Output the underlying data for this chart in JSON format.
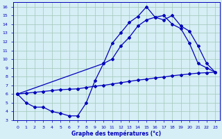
{
  "xlabel": "Graphe des températures (°c)",
  "xlim": [
    -0.5,
    23.5
  ],
  "ylim": [
    3,
    16.5
  ],
  "xticks": [
    0,
    1,
    2,
    3,
    4,
    5,
    6,
    7,
    8,
    9,
    10,
    11,
    12,
    13,
    14,
    15,
    16,
    17,
    18,
    19,
    20,
    21,
    22,
    23
  ],
  "yticks": [
    3,
    4,
    5,
    6,
    7,
    8,
    9,
    10,
    11,
    12,
    13,
    14,
    15,
    16
  ],
  "bg_color": "#d6eef5",
  "line_color": "#0000bb",
  "grid_color": "#a0c8b8",
  "curve1_x": [
    0,
    1,
    2,
    3,
    4,
    5,
    6,
    7,
    8,
    9,
    10,
    11,
    12,
    13,
    14,
    15,
    16,
    17,
    18,
    19,
    20,
    21,
    22,
    23
  ],
  "curve1_y": [
    6.0,
    5.0,
    4.5,
    4.5,
    4.0,
    3.8,
    3.5,
    3.5,
    5.0,
    7.5,
    9.5,
    11.8,
    13.0,
    14.2,
    14.9,
    16.0,
    14.8,
    15.0,
    14.0,
    13.5,
    11.8,
    9.5,
    9.0,
    8.5
  ],
  "curve2_x": [
    0,
    10,
    11,
    12,
    13,
    14,
    15,
    16,
    17,
    18,
    19,
    20,
    21,
    22,
    23
  ],
  "curve2_y": [
    6.0,
    9.5,
    10.0,
    11.5,
    12.5,
    13.8,
    14.5,
    14.8,
    14.5,
    15.0,
    13.8,
    13.2,
    11.5,
    9.5,
    8.5
  ],
  "curve3_x": [
    0,
    1,
    2,
    3,
    4,
    5,
    6,
    7,
    8,
    9,
    10,
    11,
    12,
    13,
    14,
    15,
    16,
    17,
    18,
    19,
    20,
    21,
    22,
    23
  ],
  "curve3_y": [
    6.0,
    6.1,
    6.2,
    6.3,
    6.4,
    6.5,
    6.55,
    6.6,
    6.75,
    6.9,
    7.0,
    7.15,
    7.3,
    7.45,
    7.6,
    7.7,
    7.85,
    7.95,
    8.1,
    8.2,
    8.3,
    8.4,
    8.45,
    8.5
  ],
  "marker": "D",
  "markersize": 2.0,
  "linewidth": 0.9
}
